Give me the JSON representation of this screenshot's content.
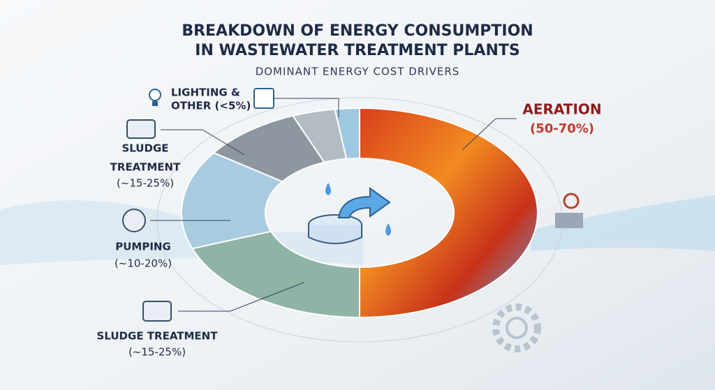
{
  "header": {
    "title": [
      "BREAKDOWN OF ENERGY CONSUMPTION",
      "IN WASTEWATER TREATMENT PLANTS"
    ],
    "subtitle": "DOMINANT ENERGY COST DRIVERS"
  },
  "segments": [
    {
      "label": [
        "LIGHTING &",
        "OTHER (<5%)"
      ]
    },
    {
      "label": [
        "SLUDGE",
        "TREATMENT",
        "(~15-25%)"
      ]
    },
    {
      "label": [
        "PUMPING",
        "(~10-20%)"
      ]
    },
    {
      "label": [
        "SLUDGE TREATMENT",
        "(~15-25%)"
      ]
    },
    {
      "label": [
        "AERATION",
        "(50-70%)"
      ]
    }
  ]
}
